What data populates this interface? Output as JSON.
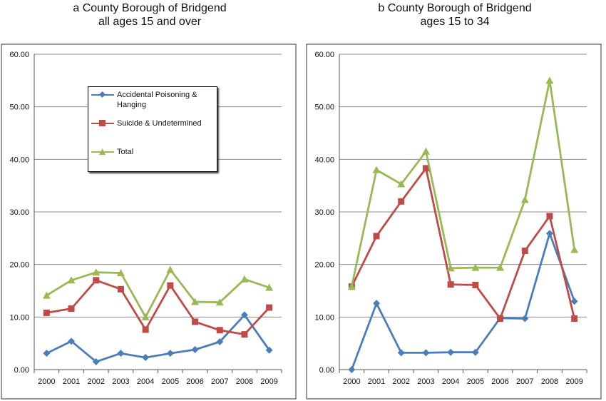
{
  "panels": [
    {
      "title_line1": "a County Borough of Bridgend",
      "title_line2": "all ages 15 and over"
    },
    {
      "title_line1": "b County Borough of Bridgend",
      "title_line2": "ages 15 to 34"
    }
  ],
  "legend": {
    "items": [
      {
        "label": "Accidental Poisoning & Hanging",
        "color": "#4a7ebb",
        "marker": "diamond"
      },
      {
        "label": "Suicide & Undetermined",
        "color": "#be4b48",
        "marker": "square"
      },
      {
        "label": "Total",
        "color": "#98b954",
        "marker": "triangle"
      }
    ]
  },
  "chart_data": [
    {
      "type": "line",
      "title": "a County Borough of Bridgend all ages 15 and over",
      "categories": [
        "2000",
        "2001",
        "2002",
        "2003",
        "2004",
        "2005",
        "2006",
        "2007",
        "2008",
        "2009"
      ],
      "ylim": [
        0,
        60
      ],
      "yticks": [
        "0.00",
        "10.00",
        "20.00",
        "30.00",
        "40.00",
        "50.00",
        "60.00"
      ],
      "grid": true,
      "legend_position": "upper-left",
      "series": [
        {
          "name": "Accidental Poisoning & Hanging",
          "color": "#4a7ebb",
          "marker": "diamond",
          "values": [
            3.1,
            5.4,
            1.5,
            3.1,
            2.3,
            3.1,
            3.8,
            5.3,
            10.4,
            3.7
          ]
        },
        {
          "name": "Suicide & Undetermined",
          "color": "#be4b48",
          "marker": "square",
          "values": [
            10.8,
            11.6,
            17.0,
            15.3,
            7.6,
            16.0,
            9.1,
            7.5,
            6.7,
            11.8
          ]
        },
        {
          "name": "Total",
          "color": "#98b954",
          "marker": "triangle",
          "values": [
            14.1,
            17.0,
            18.5,
            18.4,
            10.0,
            19.0,
            12.9,
            12.8,
            17.2,
            15.6
          ]
        }
      ]
    },
    {
      "type": "line",
      "title": "b County Borough of Bridgend ages 15 to 34",
      "categories": [
        "2000",
        "2001",
        "2002",
        "2003",
        "2004",
        "2005",
        "2006",
        "2007",
        "2008",
        "2009"
      ],
      "ylim": [
        0,
        60
      ],
      "yticks": [
        "0.00",
        "10.00",
        "20.00",
        "30.00",
        "40.00",
        "50.00",
        "60.00"
      ],
      "grid": true,
      "series": [
        {
          "name": "Accidental Poisoning & Hanging",
          "color": "#4a7ebb",
          "marker": "diamond",
          "values": [
            0.0,
            12.6,
            3.2,
            3.2,
            3.3,
            3.3,
            9.8,
            9.7,
            25.9,
            13.0
          ]
        },
        {
          "name": "Suicide & Undetermined",
          "color": "#be4b48",
          "marker": "square",
          "values": [
            15.8,
            25.4,
            32.0,
            38.3,
            16.2,
            16.1,
            9.7,
            22.6,
            29.2,
            9.7
          ]
        },
        {
          "name": "Total",
          "color": "#98b954",
          "marker": "triangle",
          "values": [
            15.8,
            38.0,
            35.3,
            41.5,
            19.3,
            19.4,
            19.4,
            32.3,
            55.0,
            22.8
          ]
        }
      ]
    }
  ]
}
